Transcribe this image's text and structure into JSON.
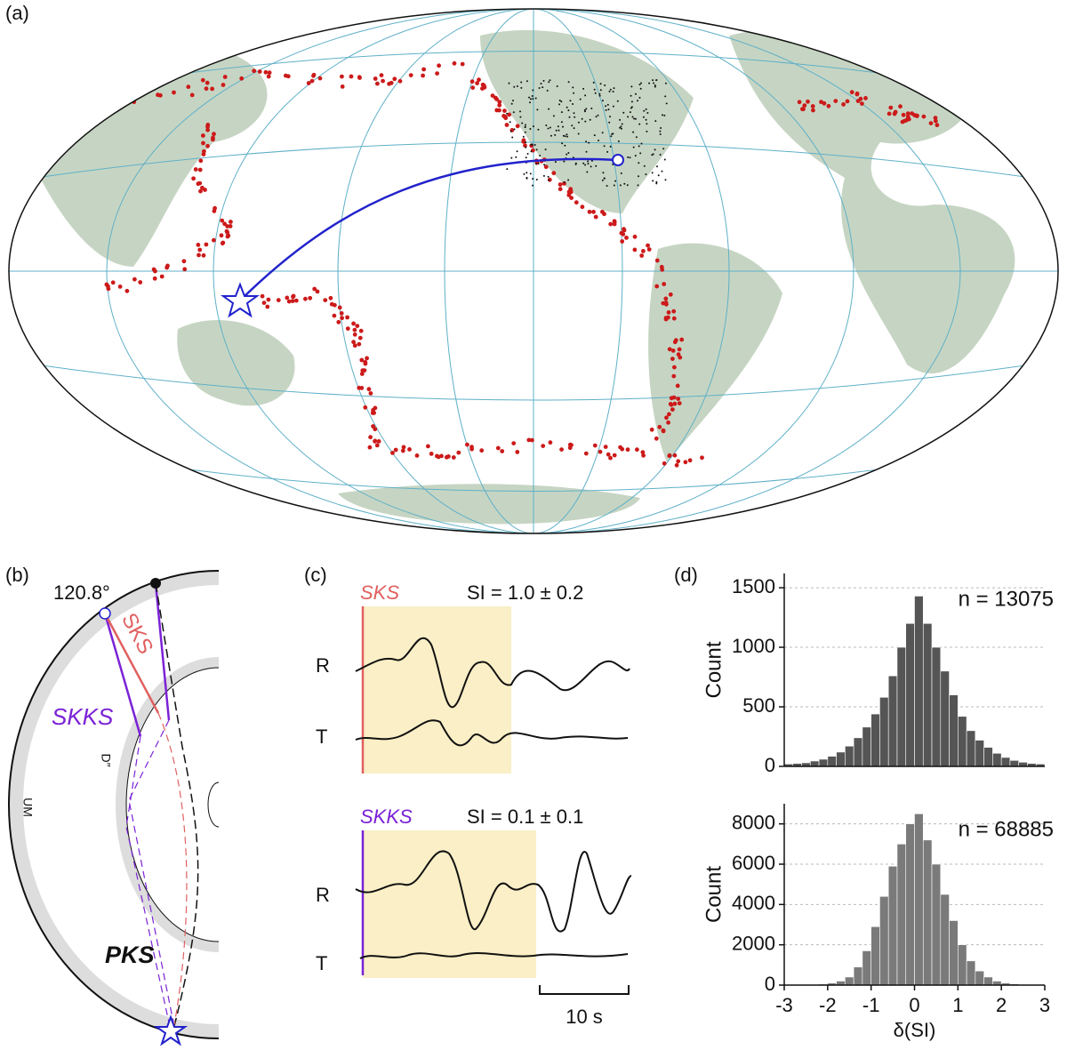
{
  "labels": {
    "a": "(a)",
    "b": "(b)",
    "c": "(c)",
    "d": "(d)"
  },
  "diagram": {
    "distance": "120.8°",
    "sks": "SKS",
    "skks": "SKKS",
    "pks": "PKS",
    "um": "UM",
    "dpp": "D″"
  },
  "waveforms": {
    "traces": [
      {
        "phase": "SKS",
        "si": "SI = 1.0 ± 0.2",
        "components": [
          "R",
          "T"
        ]
      },
      {
        "phase": "SKKS",
        "si": "SI = 0.1 ± 0.1",
        "components": [
          "R",
          "T"
        ]
      }
    ],
    "scale_bar": "10 s"
  },
  "chart_data": [
    {
      "type": "histogram",
      "ylabel": "Count",
      "annotation": "n = 13075",
      "color": "#555555",
      "bins": [
        -3,
        -2.8,
        -2.6,
        -2.4,
        -2.2,
        -2,
        -1.8,
        -1.6,
        -1.4,
        -1.2,
        -1,
        -0.8,
        -0.6,
        -0.4,
        -0.2,
        0,
        0.2,
        0.4,
        0.6,
        0.8,
        1,
        1.2,
        1.4,
        1.6,
        1.8,
        2,
        2.2,
        2.4,
        2.6,
        2.8,
        3
      ],
      "values": [
        20,
        25,
        30,
        45,
        60,
        85,
        120,
        170,
        240,
        330,
        440,
        580,
        760,
        1000,
        1200,
        1430,
        1200,
        1000,
        800,
        600,
        420,
        300,
        220,
        160,
        110,
        75,
        50,
        35,
        25,
        20
      ],
      "xlim": [
        -3,
        3
      ],
      "ylim": [
        0,
        1620
      ],
      "yticks": [
        0,
        500,
        1000,
        1500
      ],
      "grid": true
    },
    {
      "type": "histogram",
      "ylabel": "Count",
      "annotation": "n = 68885",
      "color": "#7a7a7a",
      "xlabel": "δ(SI)",
      "bins": [
        -3,
        -2.8,
        -2.6,
        -2.4,
        -2.2,
        -2,
        -1.8,
        -1.6,
        -1.4,
        -1.2,
        -1,
        -0.8,
        -0.6,
        -0.4,
        -0.2,
        0,
        0.2,
        0.4,
        0.6,
        0.8,
        1,
        1.2,
        1.4,
        1.6,
        1.8,
        2,
        2.2,
        2.4,
        2.6,
        2.8,
        3
      ],
      "values": [
        10,
        15,
        20,
        30,
        50,
        100,
        200,
        400,
        900,
        1700,
        2900,
        4400,
        5900,
        7000,
        8000,
        8500,
        7200,
        6000,
        4500,
        3200,
        2000,
        1200,
        700,
        400,
        200,
        100,
        60,
        30,
        15,
        10
      ],
      "xlim": [
        -3,
        3
      ],
      "ylim": [
        0,
        9000
      ],
      "yticks": [
        0,
        2000,
        4000,
        6000,
        8000
      ],
      "xticks": [
        -3,
        -2,
        -1,
        0,
        1,
        2,
        3
      ],
      "grid": true
    }
  ]
}
